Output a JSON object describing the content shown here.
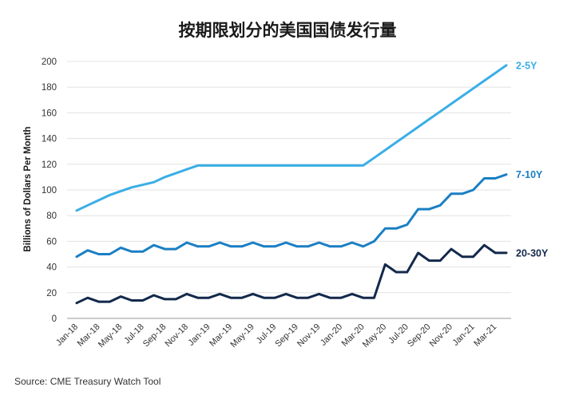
{
  "chart_data": {
    "type": "line",
    "title": "按期限划分的美国国债发行量",
    "ylabel": "Billions of Dollars Per Month",
    "xlabel": "",
    "ylim": [
      0,
      200
    ],
    "yticks": [
      0,
      20,
      40,
      60,
      80,
      100,
      120,
      140,
      160,
      180,
      200
    ],
    "grid": "horizontal",
    "legend": "end-of-line labels",
    "x": [
      "Jan-18",
      "Feb-18",
      "Mar-18",
      "Apr-18",
      "May-18",
      "Jun-18",
      "Jul-18",
      "Aug-18",
      "Sep-18",
      "Oct-18",
      "Nov-18",
      "Dec-18",
      "Jan-19",
      "Feb-19",
      "Mar-19",
      "Apr-19",
      "May-19",
      "Jun-19",
      "Jul-19",
      "Aug-19",
      "Sep-19",
      "Oct-19",
      "Nov-19",
      "Dec-19",
      "Jan-20",
      "Feb-20",
      "Mar-20",
      "Apr-20",
      "May-20",
      "Jun-20",
      "Jul-20",
      "Aug-20",
      "Sep-20",
      "Oct-20",
      "Nov-20",
      "Dec-20",
      "Jan-21",
      "Feb-21",
      "Mar-21",
      "Apr-21"
    ],
    "xtick_labels": [
      "Jan-18",
      "Mar-18",
      "May-18",
      "Jul-18",
      "Sep-18",
      "Nov-18",
      "Jan-19",
      "Mar-19",
      "May-19",
      "Jul-19",
      "Sep-19",
      "Nov-19",
      "Jan-20",
      "Mar-20",
      "May-20",
      "Jul-20",
      "Sep-20",
      "Nov-20",
      "Jan-21",
      "Mar-21"
    ],
    "series": [
      {
        "name": "2-5Y",
        "color": "#3aaee6",
        "values": [
          84,
          88,
          92,
          96,
          99,
          102,
          104,
          106,
          110,
          113,
          116,
          119,
          119,
          119,
          119,
          119,
          119,
          119,
          119,
          119,
          119,
          119,
          119,
          119,
          119,
          119,
          119,
          125,
          131,
          137,
          143,
          149,
          155,
          161,
          167,
          173,
          179,
          185,
          191,
          197
        ]
      },
      {
        "name": "7-10Y",
        "color": "#1a7fc4",
        "values": [
          48,
          53,
          50,
          50,
          55,
          52,
          52,
          57,
          54,
          54,
          59,
          56,
          56,
          59,
          56,
          56,
          59,
          56,
          56,
          59,
          56,
          56,
          59,
          56,
          56,
          59,
          56,
          60,
          70,
          70,
          73,
          85,
          85,
          88,
          97,
          97,
          100,
          109,
          109,
          112
        ]
      },
      {
        "name": "20-30Y",
        "color": "#13294b",
        "values": [
          12,
          16,
          13,
          13,
          17,
          14,
          14,
          18,
          15,
          15,
          19,
          16,
          16,
          19,
          16,
          16,
          19,
          16,
          16,
          19,
          16,
          16,
          19,
          16,
          16,
          19,
          16,
          16,
          42,
          36,
          36,
          51,
          45,
          45,
          54,
          48,
          48,
          57,
          51,
          51
        ]
      }
    ]
  },
  "source": "Source: CME Treasury Watch Tool"
}
